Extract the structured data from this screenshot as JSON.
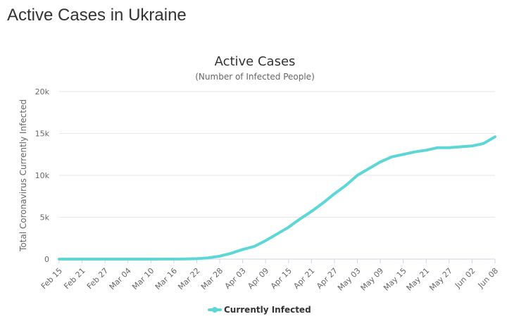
{
  "page": {
    "heading": "Active Cases in Ukraine"
  },
  "chart_data": {
    "type": "line",
    "title": "Active Cases",
    "subtitle": "(Number of Infected People)",
    "xlabel": "",
    "ylabel": "Total Coronavirus Currently Infected",
    "ylim": [
      0,
      20000
    ],
    "y_ticks": [
      0,
      5000,
      10000,
      15000,
      20000
    ],
    "y_tick_labels": [
      "0",
      "5k",
      "10k",
      "15k",
      "20k"
    ],
    "x_tick_labels": [
      "Feb 15",
      "Feb 21",
      "Feb 27",
      "Mar 04",
      "Mar 10",
      "Mar 16",
      "Mar 22",
      "Mar 28",
      "Apr 03",
      "Apr 09",
      "Apr 15",
      "Apr 21",
      "Apr 27",
      "May 03",
      "May 09",
      "May 15",
      "May 21",
      "May 27",
      "Jun 02",
      "Jun 08"
    ],
    "grid": true,
    "legend_position": "bottom-center",
    "color": "#5cd6d6",
    "series": [
      {
        "name": "Currently Infected",
        "x": [
          "Feb 15",
          "Feb 21",
          "Feb 27",
          "Mar 04",
          "Mar 10",
          "Mar 16",
          "Mar 19",
          "Mar 22",
          "Mar 25",
          "Mar 28",
          "Mar 31",
          "Apr 03",
          "Apr 06",
          "Apr 09",
          "Apr 12",
          "Apr 15",
          "Apr 18",
          "Apr 21",
          "Apr 24",
          "Apr 27",
          "Apr 30",
          "May 03",
          "May 06",
          "May 09",
          "May 12",
          "May 15",
          "May 18",
          "May 21",
          "May 24",
          "May 27",
          "May 30",
          "Jun 02",
          "Jun 05",
          "Jun 08"
        ],
        "values": [
          0,
          0,
          0,
          0,
          0,
          5,
          20,
          50,
          150,
          350,
          700,
          1150,
          1500,
          2200,
          3000,
          3800,
          4800,
          5700,
          6700,
          7800,
          8800,
          10000,
          10800,
          11600,
          12200,
          12500,
          12800,
          13000,
          13300,
          13300,
          13400,
          13500,
          13800,
          14600
        ]
      }
    ]
  }
}
